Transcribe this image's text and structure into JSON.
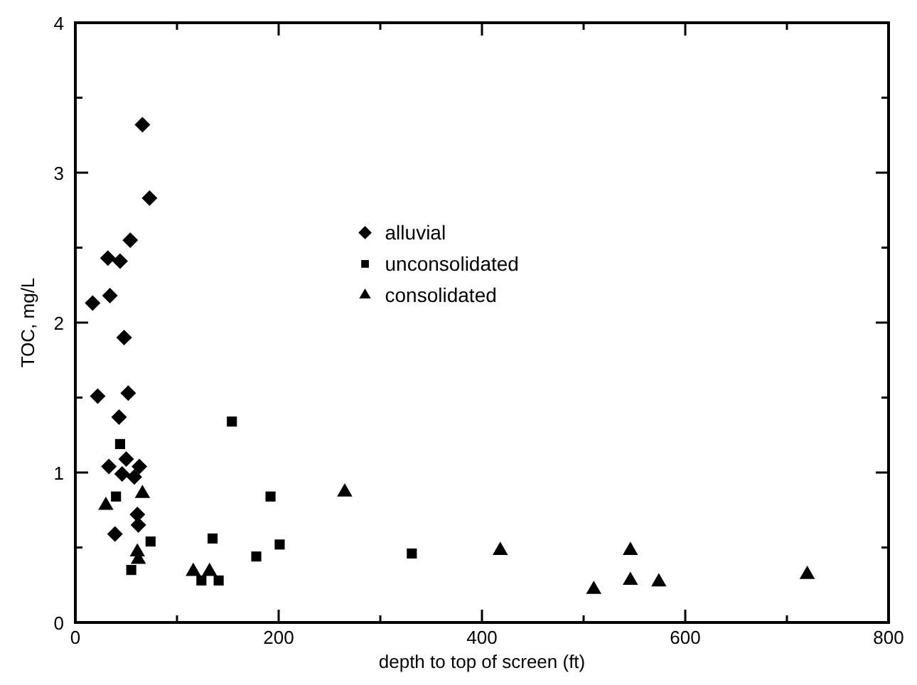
{
  "chart_data": {
    "type": "scatter",
    "xlabel": "depth to top of screen (ft)",
    "ylabel": "TOC, mg/L",
    "xlim": [
      0,
      800
    ],
    "ylim": [
      0,
      4
    ],
    "xticks": [
      0,
      {
        "value": 100,
        "label": null
      },
      200,
      {
        "value": 300,
        "label": null
      },
      400,
      {
        "value": 500,
        "label": null
      },
      600,
      {
        "value": 700,
        "label": null
      },
      800
    ],
    "yticks": [
      0,
      {
        "value": 0.5,
        "label": null
      },
      1,
      {
        "value": 1.5,
        "label": null
      },
      2,
      {
        "value": 2.5,
        "label": null
      },
      3,
      {
        "value": 3.5,
        "label": null
      },
      4
    ],
    "grid": false,
    "legend": "center",
    "series": [
      {
        "name": "alluvial",
        "color": "#000000",
        "marker": "diamond",
        "x": [
          66,
          73,
          54,
          32,
          44,
          34,
          17,
          48,
          22,
          52,
          43,
          33,
          50,
          46,
          63,
          58,
          61,
          62,
          39
        ],
        "values": [
          3.32,
          2.83,
          2.55,
          2.43,
          2.41,
          2.18,
          2.13,
          1.9,
          1.51,
          1.53,
          1.37,
          1.04,
          1.09,
          0.99,
          1.04,
          0.97,
          0.72,
          0.65,
          0.59
        ]
      },
      {
        "name": "unconsolidated",
        "color": "#000000",
        "marker": "square",
        "x": [
          44,
          40,
          74,
          55,
          154,
          135,
          124,
          141,
          192,
          201,
          178,
          331
        ],
        "values": [
          1.19,
          0.84,
          0.54,
          0.35,
          1.34,
          0.56,
          0.28,
          0.28,
          0.84,
          0.52,
          0.44,
          0.46
        ]
      },
      {
        "name": "consolidated",
        "color": "#000000",
        "marker": "triangle",
        "x": [
          30,
          66,
          61,
          62,
          116,
          132,
          265,
          418,
          510,
          546,
          546,
          574,
          720
        ],
        "values": [
          0.78,
          0.86,
          0.47,
          0.42,
          0.34,
          0.34,
          0.87,
          0.48,
          0.22,
          0.48,
          0.28,
          0.27,
          0.32
        ]
      }
    ]
  }
}
